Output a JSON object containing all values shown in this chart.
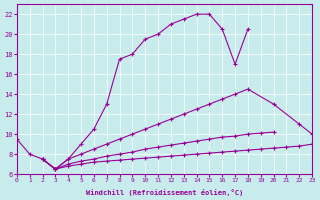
{
  "xlabel": "Windchill (Refroidissement éolien,°C)",
  "bg_color": "#c8ecec",
  "line_color": "#990099",
  "xlim": [
    0,
    23
  ],
  "ylim": [
    6,
    23
  ],
  "xticks": [
    0,
    1,
    2,
    3,
    4,
    5,
    6,
    7,
    8,
    9,
    10,
    11,
    12,
    13,
    14,
    15,
    16,
    17,
    18,
    19,
    20,
    21,
    22,
    23
  ],
  "yticks": [
    6,
    8,
    10,
    12,
    14,
    16,
    18,
    20,
    22
  ],
  "s1_x": [
    0,
    1,
    2,
    3,
    4,
    5,
    6,
    7,
    8,
    9,
    10,
    11,
    12,
    13,
    14,
    15,
    16,
    17,
    18
  ],
  "s1_y": [
    9.5,
    8.0,
    7.5,
    6.5,
    7.5,
    9.0,
    10.5,
    13.0,
    17.5,
    18.0,
    19.5,
    20.0,
    21.0,
    21.5,
    22.0,
    22.0,
    20.5,
    17.0,
    20.5
  ],
  "s2_x": [
    2,
    3,
    4,
    5,
    6,
    7,
    8,
    9,
    10,
    11,
    12,
    13,
    14,
    15,
    16,
    17,
    18,
    20,
    22,
    23
  ],
  "s2_y": [
    7.5,
    6.5,
    7.5,
    8.0,
    8.5,
    9.0,
    9.5,
    10.0,
    10.5,
    11.0,
    11.5,
    12.0,
    12.5,
    13.0,
    13.5,
    14.0,
    14.5,
    13.0,
    11.0,
    10.0
  ],
  "s3_x": [
    2,
    3,
    4,
    5,
    6,
    7,
    8,
    9,
    10,
    11,
    12,
    13,
    14,
    15,
    16,
    17,
    18,
    19,
    20
  ],
  "s3_y": [
    7.5,
    6.5,
    7.0,
    7.3,
    7.5,
    7.8,
    8.0,
    8.2,
    8.5,
    8.7,
    8.9,
    9.1,
    9.3,
    9.5,
    9.7,
    9.8,
    10.0,
    10.1,
    10.2
  ],
  "s4_x": [
    2,
    3,
    4,
    5,
    6,
    7,
    8,
    9,
    10,
    11,
    12,
    13,
    14,
    15,
    16,
    17,
    18,
    19,
    20,
    21,
    22,
    23
  ],
  "s4_y": [
    7.5,
    6.5,
    6.8,
    7.0,
    7.2,
    7.3,
    7.4,
    7.5,
    7.6,
    7.7,
    7.8,
    7.9,
    8.0,
    8.1,
    8.2,
    8.3,
    8.4,
    8.5,
    8.6,
    8.7,
    8.8,
    9.0
  ]
}
